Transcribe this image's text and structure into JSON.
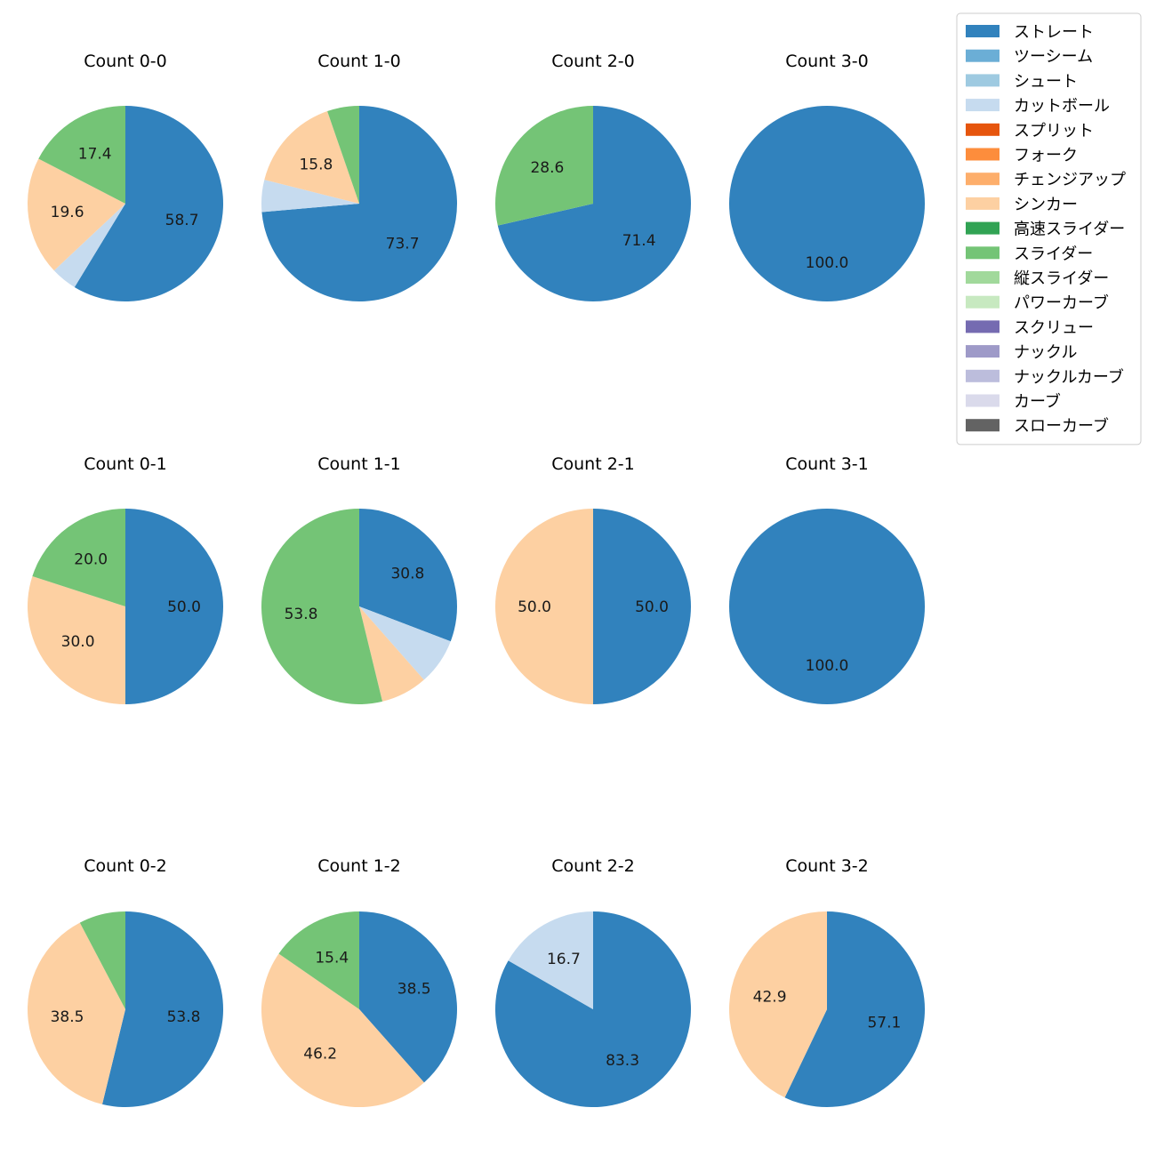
{
  "chart_data": {
    "type": "pie",
    "legend_position": "top-right",
    "legend": [
      {
        "label": "ストレート",
        "color": "#3182bd"
      },
      {
        "label": "ツーシーム",
        "color": "#6baed6"
      },
      {
        "label": "シュート",
        "color": "#9ecae1"
      },
      {
        "label": "カットボール",
        "color": "#c6dbef"
      },
      {
        "label": "スプリット",
        "color": "#e6550d"
      },
      {
        "label": "フォーク",
        "color": "#fd8d3c"
      },
      {
        "label": "チェンジアップ",
        "color": "#fdae6b"
      },
      {
        "label": "シンカー",
        "color": "#fdd0a2"
      },
      {
        "label": "高速スライダー",
        "color": "#31a354"
      },
      {
        "label": "スライダー",
        "color": "#74c476"
      },
      {
        "label": "縦スライダー",
        "color": "#a1d99b"
      },
      {
        "label": "パワーカーブ",
        "color": "#c7e9c0"
      },
      {
        "label": "スクリュー",
        "color": "#756bb1"
      },
      {
        "label": "ナックル",
        "color": "#9e9ac8"
      },
      {
        "label": "ナックルカーブ",
        "color": "#bcbddc"
      },
      {
        "label": "カーブ",
        "color": "#dadaeb"
      },
      {
        "label": "スローカーブ",
        "color": "#636363"
      }
    ],
    "pies": [
      {
        "title": "Count 0-0",
        "slices": [
          {
            "category": "ストレート",
            "value": 58.7,
            "label": "58.7"
          },
          {
            "category": "カットボール",
            "value": 4.3,
            "label": ""
          },
          {
            "category": "シンカー",
            "value": 19.6,
            "label": "19.6"
          },
          {
            "category": "スライダー",
            "value": 17.4,
            "label": "17.4"
          }
        ]
      },
      {
        "title": "Count 1-0",
        "slices": [
          {
            "category": "ストレート",
            "value": 73.7,
            "label": "73.7"
          },
          {
            "category": "カットボール",
            "value": 5.3,
            "label": ""
          },
          {
            "category": "シンカー",
            "value": 15.8,
            "label": "15.8"
          },
          {
            "category": "スライダー",
            "value": 5.3,
            "label": ""
          }
        ]
      },
      {
        "title": "Count 2-0",
        "slices": [
          {
            "category": "ストレート",
            "value": 71.4,
            "label": "71.4"
          },
          {
            "category": "スライダー",
            "value": 28.6,
            "label": "28.6"
          }
        ]
      },
      {
        "title": "Count 3-0",
        "slices": [
          {
            "category": "ストレート",
            "value": 100.0,
            "label": "100.0"
          }
        ]
      },
      {
        "title": "Count 0-1",
        "slices": [
          {
            "category": "ストレート",
            "value": 50.0,
            "label": "50.0"
          },
          {
            "category": "シンカー",
            "value": 30.0,
            "label": "30.0"
          },
          {
            "category": "スライダー",
            "value": 20.0,
            "label": "20.0"
          }
        ]
      },
      {
        "title": "Count 1-1",
        "slices": [
          {
            "category": "ストレート",
            "value": 30.8,
            "label": "30.8"
          },
          {
            "category": "カットボール",
            "value": 7.7,
            "label": ""
          },
          {
            "category": "シンカー",
            "value": 7.7,
            "label": ""
          },
          {
            "category": "スライダー",
            "value": 53.8,
            "label": "53.8"
          }
        ]
      },
      {
        "title": "Count 2-1",
        "slices": [
          {
            "category": "ストレート",
            "value": 50.0,
            "label": "50.0"
          },
          {
            "category": "シンカー",
            "value": 50.0,
            "label": "50.0"
          }
        ]
      },
      {
        "title": "Count 3-1",
        "slices": [
          {
            "category": "ストレート",
            "value": 100.0,
            "label": "100.0"
          }
        ]
      },
      {
        "title": "Count 0-2",
        "slices": [
          {
            "category": "ストレート",
            "value": 53.8,
            "label": "53.8"
          },
          {
            "category": "シンカー",
            "value": 38.5,
            "label": "38.5"
          },
          {
            "category": "スライダー",
            "value": 7.7,
            "label": ""
          }
        ]
      },
      {
        "title": "Count 1-2",
        "slices": [
          {
            "category": "ストレート",
            "value": 38.5,
            "label": "38.5"
          },
          {
            "category": "シンカー",
            "value": 46.2,
            "label": "46.2"
          },
          {
            "category": "スライダー",
            "value": 15.4,
            "label": "15.4"
          }
        ]
      },
      {
        "title": "Count 2-2",
        "slices": [
          {
            "category": "ストレート",
            "value": 83.3,
            "label": "83.3"
          },
          {
            "category": "カットボール",
            "value": 16.7,
            "label": "16.7"
          }
        ]
      },
      {
        "title": "Count 3-2",
        "slices": [
          {
            "category": "ストレート",
            "value": 57.1,
            "label": "57.1"
          },
          {
            "category": "シンカー",
            "value": 42.9,
            "label": "42.9"
          }
        ]
      }
    ]
  }
}
